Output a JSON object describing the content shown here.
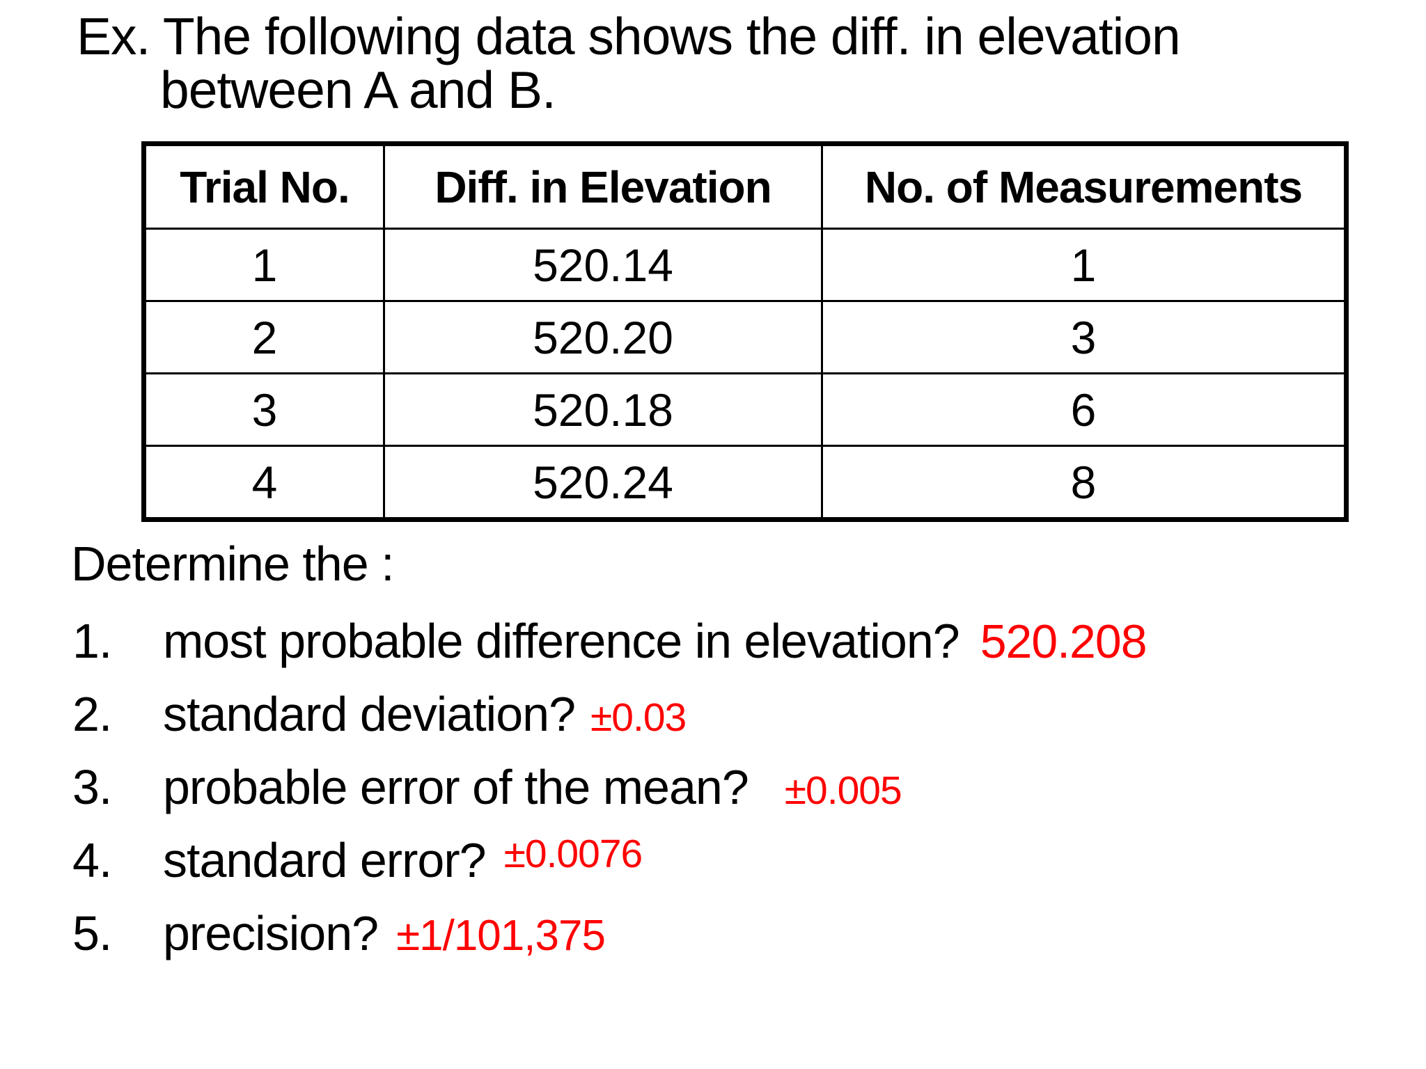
{
  "slide": {
    "background": "#ffffff",
    "text_color": "#000000",
    "answer_color": "#ff0000",
    "title_line1": "Ex. The following data shows the diff. in elevation",
    "title_line2": "between A and B.",
    "determine_label": "Determine the :",
    "questions": [
      {
        "num": "1.",
        "text": "most probable difference in elevation?",
        "answer": "520.208"
      },
      {
        "num": "2.",
        "text": "standard deviation?",
        "answer": "±0.03"
      },
      {
        "num": "3.",
        "text": "probable error of the mean?",
        "answer": "±0.005"
      },
      {
        "num": "4.",
        "text": "standard error?",
        "answer": "±0.0076"
      },
      {
        "num": "5.",
        "text": "precision?",
        "answer": "±1/101,375"
      }
    ]
  },
  "table": {
    "headers": [
      "Trial No.",
      "Diff. in Elevation",
      "No. of Measurements"
    ],
    "rows": [
      [
        "1",
        "520.14",
        "1"
      ],
      [
        "2",
        "520.20",
        "3"
      ],
      [
        "3",
        "520.18",
        "6"
      ],
      [
        "4",
        "520.24",
        "8"
      ]
    ]
  }
}
